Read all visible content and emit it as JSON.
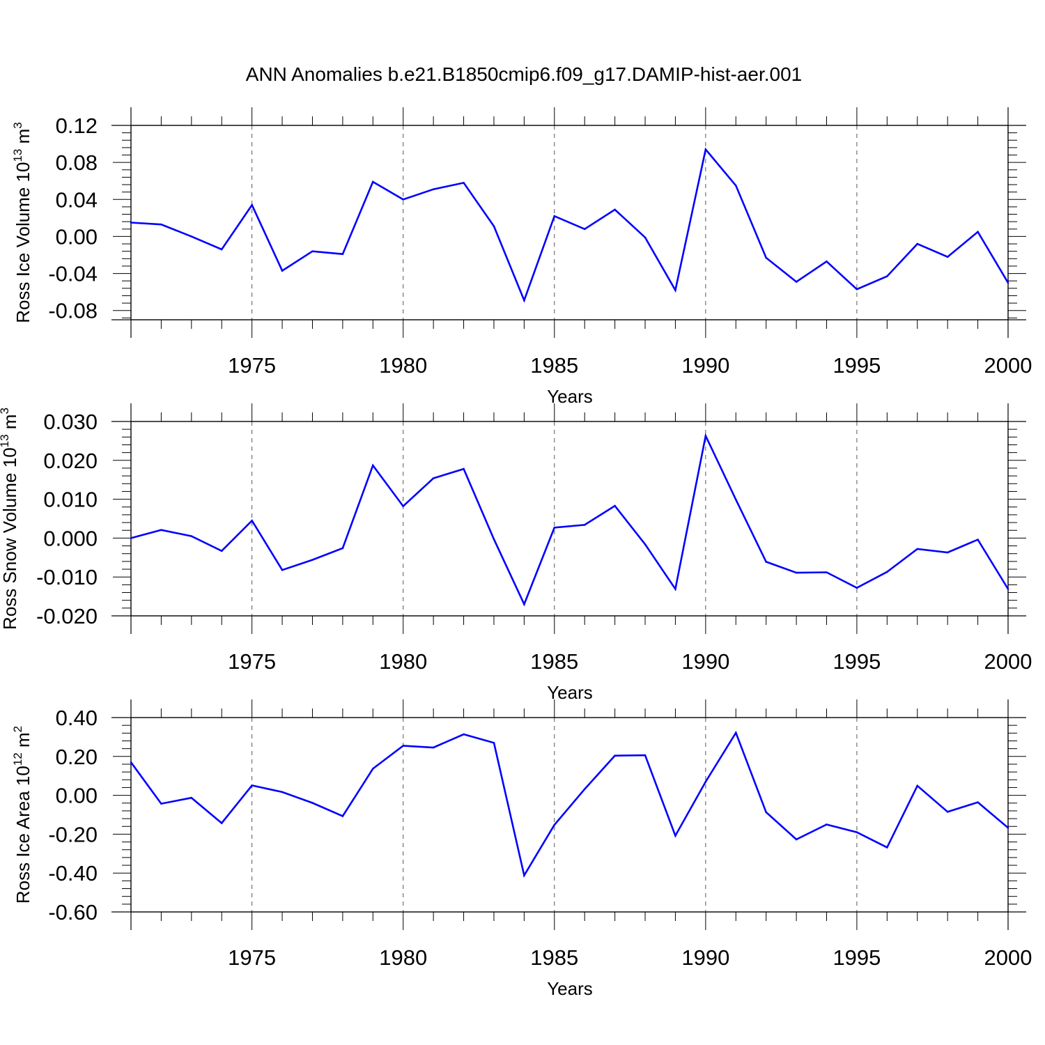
{
  "title": "ANN Anomalies b.e21.B1850cmip6.f09_g17.DAMIP-hist-aer.001",
  "colors": {
    "line": "#0000ff",
    "axis": "#000000",
    "grid": "#555555"
  },
  "chart_data": [
    {
      "type": "line",
      "ylabel": "Ross Ice Volume 10",
      "ylabel_exp": "13",
      "ylabel_unit": " m",
      "ylabel_unit_exp": "3",
      "xlabel": "Years",
      "xlim": [
        1971,
        2000
      ],
      "ylim": [
        -0.09,
        0.12
      ],
      "yticks": [
        -0.08,
        -0.04,
        0.0,
        0.04,
        0.08,
        0.12
      ],
      "ytick_labels": [
        "-0.08",
        "-0.04",
        "0.00",
        "0.04",
        "0.08",
        "0.12"
      ],
      "xticks": [
        1975,
        1980,
        1985,
        1990,
        1995,
        2000
      ],
      "xtick_labels": [
        "1975",
        "1980",
        "1985",
        "1990",
        "1995",
        "2000"
      ],
      "grid": "vertical dashed at major x ticks",
      "x": [
        1971,
        1972,
        1973,
        1974,
        1975,
        1976,
        1977,
        1978,
        1979,
        1980,
        1981,
        1982,
        1983,
        1984,
        1985,
        1986,
        1987,
        1988,
        1989,
        1990,
        1991,
        1992,
        1993,
        1994,
        1995,
        1996,
        1997,
        1998,
        1999,
        2000
      ],
      "y": [
        0.015,
        0.013,
        0.0,
        -0.014,
        0.034,
        -0.037,
        -0.016,
        -0.019,
        0.059,
        0.04,
        0.051,
        0.058,
        0.011,
        -0.069,
        0.022,
        0.008,
        0.029,
        -0.001,
        -0.058,
        0.094,
        0.055,
        -0.023,
        -0.049,
        -0.027,
        -0.057,
        -0.043,
        -0.008,
        -0.022,
        0.005,
        -0.05
      ]
    },
    {
      "type": "line",
      "ylabel": "Ross Snow Volume 10",
      "ylabel_exp": "13",
      "ylabel_unit": " m",
      "ylabel_unit_exp": "3",
      "xlabel": "Years",
      "xlim": [
        1971,
        2000
      ],
      "ylim": [
        -0.02,
        0.03
      ],
      "yticks": [
        -0.02,
        -0.01,
        0.0,
        0.01,
        0.02,
        0.03
      ],
      "ytick_labels": [
        "-0.020",
        "-0.010",
        "0.000",
        "0.010",
        "0.020",
        "0.030"
      ],
      "xticks": [
        1975,
        1980,
        1985,
        1990,
        1995,
        2000
      ],
      "xtick_labels": [
        "1975",
        "1980",
        "1985",
        "1990",
        "1995",
        "2000"
      ],
      "grid": "vertical dashed at major x ticks",
      "x": [
        1971,
        1972,
        1973,
        1974,
        1975,
        1976,
        1977,
        1978,
        1979,
        1980,
        1981,
        1982,
        1983,
        1984,
        1985,
        1986,
        1987,
        1988,
        1989,
        1990,
        1991,
        1992,
        1993,
        1994,
        1995,
        1996,
        1997,
        1998,
        1999,
        2000
      ],
      "y": [
        0.0,
        0.0021,
        0.0005,
        -0.0033,
        0.0045,
        -0.0082,
        -0.0056,
        -0.0026,
        0.0187,
        0.0082,
        0.0154,
        0.0178,
        -0.0003,
        -0.017,
        0.0027,
        0.0034,
        0.0083,
        -0.0016,
        -0.0131,
        0.0263,
        0.0099,
        -0.0061,
        -0.0089,
        -0.0088,
        -0.0128,
        -0.0087,
        -0.0028,
        -0.0037,
        -0.0004,
        -0.0131
      ]
    },
    {
      "type": "line",
      "ylabel": "Ross Ice Area 10",
      "ylabel_exp": "12",
      "ylabel_unit": " m",
      "ylabel_unit_exp": "2",
      "xlabel": "Years",
      "xlim": [
        1971,
        2000
      ],
      "ylim": [
        -0.6,
        0.4
      ],
      "yticks": [
        -0.6,
        -0.4,
        -0.2,
        0.0,
        0.2,
        0.4
      ],
      "ytick_labels": [
        "-0.60",
        "-0.40",
        "-0.20",
        "0.00",
        "0.20",
        "0.40"
      ],
      "xticks": [
        1975,
        1980,
        1985,
        1990,
        1995,
        2000
      ],
      "xtick_labels": [
        "1975",
        "1980",
        "1985",
        "1990",
        "1995",
        "2000"
      ],
      "grid": "vertical dashed at major x ticks",
      "x": [
        1971,
        1972,
        1973,
        1974,
        1975,
        1976,
        1977,
        1978,
        1979,
        1980,
        1981,
        1982,
        1983,
        1984,
        1985,
        1986,
        1987,
        1988,
        1989,
        1990,
        1991,
        1992,
        1993,
        1994,
        1995,
        1996,
        1997,
        1998,
        1999,
        2000
      ],
      "y": [
        0.17,
        -0.043,
        -0.013,
        -0.143,
        0.051,
        0.017,
        -0.039,
        -0.107,
        0.137,
        0.255,
        0.246,
        0.314,
        0.27,
        -0.412,
        -0.152,
        0.032,
        0.204,
        0.206,
        -0.208,
        0.07,
        0.322,
        -0.087,
        -0.227,
        -0.15,
        -0.19,
        -0.268,
        0.049,
        -0.085,
        -0.036,
        -0.167
      ]
    }
  ]
}
